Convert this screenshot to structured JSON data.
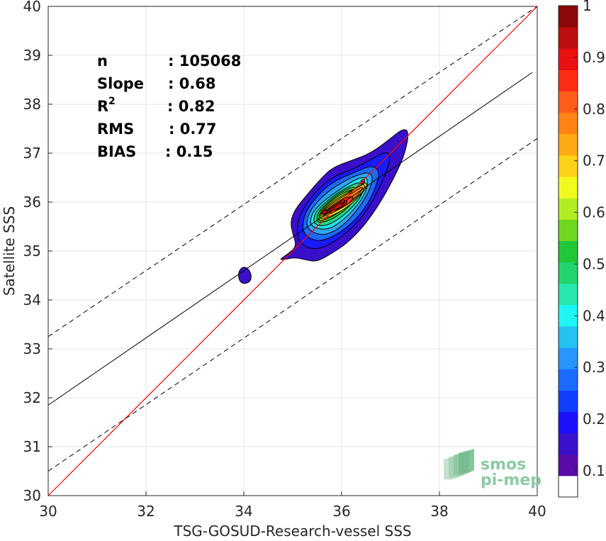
{
  "chart_data": {
    "type": "contour-scatter",
    "xlabel": "TSG-GOSUD-Research-vessel SSS",
    "ylabel": "Satellite SSS",
    "xlim": [
      30,
      40
    ],
    "ylim": [
      30,
      40
    ],
    "xticks": [
      "30",
      "32",
      "34",
      "36",
      "38",
      "40"
    ],
    "yticks": [
      "30",
      "31",
      "32",
      "33",
      "34",
      "35",
      "36",
      "37",
      "38",
      "39",
      "40"
    ],
    "grid": true,
    "stats": [
      {
        "key": "n",
        "sup": "",
        "value": ": 105068"
      },
      {
        "key": "Slope",
        "sup": "",
        "value": ": 0.68"
      },
      {
        "key": "R",
        "sup": "2",
        "value": ": 0.82"
      },
      {
        "key": "RMS",
        "sup": "",
        "value": ": 0.77"
      },
      {
        "key": "BIAS",
        "sup": "",
        "value": ": 0.15"
      }
    ],
    "lines": {
      "one_to_one": [
        [
          30,
          30
        ],
        [
          40,
          40
        ]
      ],
      "regression": [
        [
          30,
          31.85
        ],
        [
          39.9,
          38.65
        ]
      ],
      "upper_bound": [
        [
          30,
          33.25
        ],
        [
          40,
          40
        ]
      ],
      "lower_bound": [
        [
          30,
          30.5
        ],
        [
          40,
          37.3
        ]
      ]
    },
    "density_contours": [
      {
        "level": 0.05,
        "color": "#3a0fc9",
        "points": [
          [
            34.72,
            34.82
          ],
          [
            34.92,
            34.95
          ],
          [
            35.08,
            35.1
          ],
          [
            35.0,
            35.35
          ],
          [
            34.95,
            35.6
          ],
          [
            35.05,
            35.85
          ],
          [
            35.25,
            36.1
          ],
          [
            35.55,
            36.45
          ],
          [
            35.8,
            36.7
          ],
          [
            36.2,
            36.85
          ],
          [
            36.6,
            37.0
          ],
          [
            37.0,
            37.3
          ],
          [
            37.25,
            37.5
          ],
          [
            37.38,
            37.45
          ],
          [
            37.3,
            37.0
          ],
          [
            37.1,
            36.55
          ],
          [
            36.8,
            36.0
          ],
          [
            36.45,
            35.5
          ],
          [
            36.1,
            35.15
          ],
          [
            35.8,
            34.95
          ],
          [
            35.5,
            34.78
          ],
          [
            35.25,
            34.82
          ],
          [
            35.05,
            34.87
          ],
          [
            34.85,
            34.83
          ]
        ]
      },
      {
        "level": 0.1,
        "color": "#1a1aff",
        "points": [
          [
            35.08,
            35.25
          ],
          [
            35.12,
            35.7
          ],
          [
            35.3,
            36.0
          ],
          [
            35.6,
            36.35
          ],
          [
            35.9,
            36.55
          ],
          [
            36.3,
            36.7
          ],
          [
            36.65,
            36.9
          ],
          [
            36.95,
            37.05
          ],
          [
            37.0,
            36.85
          ],
          [
            36.85,
            36.45
          ],
          [
            36.6,
            35.95
          ],
          [
            36.3,
            35.55
          ],
          [
            35.95,
            35.25
          ],
          [
            35.6,
            35.05
          ],
          [
            35.3,
            35.05
          ]
        ]
      },
      {
        "level": 0.2,
        "color": "#1c6bff",
        "points": [
          [
            35.2,
            35.35
          ],
          [
            35.22,
            35.7
          ],
          [
            35.38,
            35.98
          ],
          [
            35.65,
            36.28
          ],
          [
            35.95,
            36.48
          ],
          [
            36.3,
            36.62
          ],
          [
            36.6,
            36.75
          ],
          [
            36.78,
            36.65
          ],
          [
            36.7,
            36.3
          ],
          [
            36.5,
            35.9
          ],
          [
            36.2,
            35.55
          ],
          [
            35.85,
            35.3
          ],
          [
            35.5,
            35.18
          ]
        ]
      },
      {
        "level": 0.3,
        "color": "#2ea6f0",
        "points": [
          [
            35.28,
            35.45
          ],
          [
            35.3,
            35.72
          ],
          [
            35.45,
            35.95
          ],
          [
            35.7,
            36.2
          ],
          [
            36.0,
            36.4
          ],
          [
            36.3,
            36.55
          ],
          [
            36.58,
            36.62
          ],
          [
            36.65,
            36.45
          ],
          [
            36.5,
            36.1
          ],
          [
            36.25,
            35.75
          ],
          [
            35.95,
            35.45
          ],
          [
            35.6,
            35.3
          ]
        ]
      },
      {
        "level": 0.4,
        "color": "#22e3e8",
        "points": [
          [
            35.35,
            35.5
          ],
          [
            35.38,
            35.75
          ],
          [
            35.55,
            35.95
          ],
          [
            35.8,
            36.15
          ],
          [
            36.1,
            36.35
          ],
          [
            36.35,
            36.5
          ],
          [
            36.55,
            36.5
          ],
          [
            36.5,
            36.2
          ],
          [
            36.3,
            35.9
          ],
          [
            36.0,
            35.6
          ],
          [
            35.7,
            35.42
          ]
        ]
      },
      {
        "level": 0.5,
        "color": "#20d98c",
        "points": [
          [
            35.42,
            35.55
          ],
          [
            35.45,
            35.78
          ],
          [
            35.65,
            35.98
          ],
          [
            35.9,
            36.18
          ],
          [
            36.2,
            36.35
          ],
          [
            36.42,
            36.42
          ],
          [
            36.45,
            36.2
          ],
          [
            36.25,
            35.92
          ],
          [
            35.95,
            35.65
          ],
          [
            35.65,
            35.5
          ]
        ]
      },
      {
        "level": 0.6,
        "color": "#38c93a",
        "points": [
          [
            35.48,
            35.6
          ],
          [
            35.52,
            35.8
          ],
          [
            35.72,
            36.0
          ],
          [
            35.98,
            36.2
          ],
          [
            36.25,
            36.33
          ],
          [
            36.38,
            36.22
          ],
          [
            36.2,
            35.95
          ],
          [
            35.9,
            35.7
          ],
          [
            35.62,
            35.58
          ]
        ]
      },
      {
        "level": 0.65,
        "color": "#a6e61a",
        "points": [
          [
            35.52,
            35.63
          ],
          [
            35.57,
            35.82
          ],
          [
            35.78,
            36.02
          ],
          [
            36.05,
            36.2
          ],
          [
            36.3,
            36.28
          ],
          [
            36.3,
            36.1
          ],
          [
            36.08,
            35.88
          ],
          [
            35.8,
            35.7
          ],
          [
            35.6,
            35.62
          ]
        ]
      },
      {
        "level": 0.7,
        "color": "#ffe21a",
        "points": [
          [
            35.55,
            35.68
          ],
          [
            35.6,
            35.82
          ],
          [
            35.8,
            36.0
          ],
          [
            36.08,
            36.17
          ],
          [
            36.32,
            36.3
          ],
          [
            36.5,
            36.42
          ],
          [
            36.52,
            36.3
          ],
          [
            36.3,
            36.05
          ],
          [
            36.05,
            35.85
          ],
          [
            35.8,
            35.72
          ],
          [
            35.62,
            35.66
          ]
        ]
      },
      {
        "level": 0.75,
        "color": "#ffb31a",
        "points": [
          [
            35.58,
            35.7
          ],
          [
            35.62,
            35.82
          ],
          [
            35.85,
            36.0
          ],
          [
            36.1,
            36.15
          ],
          [
            36.35,
            36.32
          ],
          [
            36.48,
            36.38
          ],
          [
            36.45,
            36.22
          ],
          [
            36.2,
            36.0
          ],
          [
            35.95,
            35.85
          ],
          [
            35.7,
            35.72
          ]
        ]
      },
      {
        "level": 0.8,
        "color": "#ff7a14",
        "points": [
          [
            35.6,
            35.72
          ],
          [
            35.66,
            35.82
          ],
          [
            35.88,
            35.98
          ],
          [
            36.12,
            36.12
          ],
          [
            36.38,
            36.3
          ],
          [
            36.45,
            36.3
          ],
          [
            36.3,
            36.1
          ],
          [
            36.05,
            35.95
          ],
          [
            35.8,
            35.8
          ]
        ]
      },
      {
        "level": 0.85,
        "color": "#ff3a1a",
        "points": [
          [
            35.62,
            35.74
          ],
          [
            35.7,
            35.83
          ],
          [
            35.92,
            35.98
          ],
          [
            36.12,
            36.1
          ],
          [
            36.25,
            36.12
          ],
          [
            36.18,
            35.98
          ],
          [
            35.98,
            35.88
          ],
          [
            35.75,
            35.78
          ]
        ]
      },
      {
        "level": 0.9,
        "color": "#e01010",
        "points": [
          [
            35.65,
            35.76
          ],
          [
            35.75,
            35.84
          ],
          [
            35.95,
            35.97
          ],
          [
            36.1,
            36.05
          ],
          [
            36.12,
            35.98
          ],
          [
            35.95,
            35.88
          ],
          [
            35.78,
            35.8
          ]
        ]
      },
      {
        "level": 0.95,
        "color": "#b80d0d",
        "points": [
          [
            35.58,
            35.78
          ],
          [
            35.65,
            35.85
          ],
          [
            35.72,
            35.82
          ],
          [
            35.66,
            35.74
          ]
        ]
      },
      {
        "level": 0.95,
        "color": "#b80d0d",
        "points": [
          [
            35.95,
            35.98
          ],
          [
            36.0,
            36.06
          ],
          [
            36.08,
            36.03
          ],
          [
            36.03,
            35.95
          ]
        ]
      },
      {
        "level": 0.95,
        "color": "#b80d0d",
        "points": [
          [
            36.38,
            36.42
          ],
          [
            36.45,
            36.48
          ],
          [
            36.48,
            36.4
          ],
          [
            36.42,
            36.36
          ]
        ]
      },
      {
        "level": 0.05,
        "color": "#3a0fc9",
        "points": [
          [
            33.88,
            34.5
          ],
          [
            33.93,
            34.65
          ],
          [
            34.05,
            34.68
          ],
          [
            34.15,
            34.55
          ],
          [
            34.15,
            34.4
          ],
          [
            34.05,
            34.33
          ],
          [
            33.93,
            34.35
          ]
        ]
      }
    ],
    "colorbar": {
      "label_values": [
        "0.1",
        "0.2",
        "0.3",
        "0.4",
        "0.5",
        "0.6",
        "0.7",
        "0.8",
        "0.9",
        "1"
      ],
      "bands": [
        "#ffffff",
        "#5a0aa8",
        "#3a10cc",
        "#1c10ff",
        "#1040ff",
        "#1c6bff",
        "#2896ff",
        "#25c2f0",
        "#1ef5f5",
        "#28e6b0",
        "#22d46c",
        "#20c838",
        "#6ed820",
        "#b4ec22",
        "#f0fa1e",
        "#ffd21a",
        "#ffaa14",
        "#ff8414",
        "#ff5e1a",
        "#ff2c14",
        "#e81010",
        "#bc0e0e",
        "#8c0808"
      ]
    },
    "colors": {
      "one_to_one": "#ff0000",
      "regression": "#000000",
      "bounds": "#000000",
      "grid": "#e6e6e6"
    },
    "watermark": {
      "line1": "smos",
      "line2": "pi-mep"
    }
  }
}
